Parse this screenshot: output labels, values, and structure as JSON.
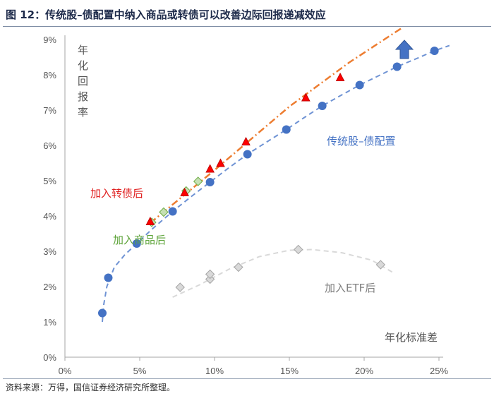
{
  "header": {
    "title": "图 12：传统股–债配置中纳入商品或转债可以改善边际回报递减效应"
  },
  "footer": {
    "source": "资料来源：万得，国信证券经济研究所整理。"
  },
  "chart_data": {
    "type": "scatter",
    "xlabel": "年化标准差",
    "ylabel": "年化回报率",
    "xlim": [
      0,
      0.25
    ],
    "ylim": [
      0,
      0.09
    ],
    "xticks": [
      0,
      0.05,
      0.1,
      0.15,
      0.2,
      0.25
    ],
    "yticks": [
      0,
      0.01,
      0.02,
      0.03,
      0.04,
      0.05,
      0.06,
      0.07,
      0.08,
      0.09
    ],
    "xtick_labels": [
      "0%",
      "5%",
      "10%",
      "15%",
      "20%",
      "25%"
    ],
    "ytick_labels": [
      "0%",
      "1%",
      "2%",
      "3%",
      "4%",
      "5%",
      "6%",
      "7%",
      "8%",
      "9%"
    ],
    "grid": false,
    "legend": "none",
    "series": [
      {
        "name": "传统股–债配置",
        "label_color": "#4472c4",
        "marker": "circle",
        "color": "#4472c4",
        "x": [
          0.025,
          0.029,
          0.048,
          0.072,
          0.097,
          0.122,
          0.148,
          0.172,
          0.197,
          0.222,
          0.247
        ],
        "y": [
          0.0125,
          0.0225,
          0.0322,
          0.0413,
          0.0496,
          0.0575,
          0.0645,
          0.0712,
          0.0771,
          0.0823,
          0.0868
        ]
      },
      {
        "name": "加入商品后",
        "label_color": "#5ea43a",
        "marker": "diamond",
        "color": "#92d050",
        "x": [
          0.058,
          0.066,
          0.081,
          0.089
        ],
        "y": [
          0.0382,
          0.0411,
          0.0471,
          0.0498
        ]
      },
      {
        "name": "加入转债后",
        "label_color": "#e02020",
        "marker": "triangle",
        "color": "#ff0000",
        "x": [
          0.057,
          0.08,
          0.097,
          0.104,
          0.121,
          0.161,
          0.184
        ],
        "y": [
          0.0384,
          0.0466,
          0.0533,
          0.0549,
          0.061,
          0.0735,
          0.0792
        ]
      },
      {
        "name": "加入ETF后",
        "label_color": "#7f7f7f",
        "marker": "diamond",
        "color": "#bfbfbf",
        "x": [
          0.077,
          0.097,
          0.097,
          0.116,
          0.156,
          0.211
        ],
        "y": [
          0.0198,
          0.0221,
          0.0235,
          0.0255,
          0.0305,
          0.0262
        ]
      }
    ],
    "annotations": [
      {
        "text": "传统股–债配置",
        "color": "#4472c4"
      },
      {
        "text": "加入转债后",
        "color": "#e02020"
      },
      {
        "text": "加入商品后",
        "color": "#5ea43a"
      },
      {
        "text": "加入ETF后",
        "color": "#7f7f7f"
      }
    ],
    "trend_lines": {
      "blue_frontier": {
        "color": "#6f93d4",
        "style": "dashed",
        "x": [
          0.025,
          0.026,
          0.028,
          0.033,
          0.04,
          0.048,
          0.058,
          0.072,
          0.085,
          0.097,
          0.11,
          0.122,
          0.135,
          0.148,
          0.16,
          0.172,
          0.185,
          0.197,
          0.21,
          0.222,
          0.235,
          0.247,
          0.257
        ],
        "y": [
          0.01,
          0.015,
          0.02,
          0.0255,
          0.029,
          0.0322,
          0.0362,
          0.0413,
          0.0457,
          0.0496,
          0.0538,
          0.0575,
          0.061,
          0.0645,
          0.0679,
          0.0712,
          0.0743,
          0.0771,
          0.0798,
          0.0823,
          0.0846,
          0.0868,
          0.0883
        ]
      },
      "orange_trend": {
        "color": "#ed7d31",
        "style": "dash-dot",
        "x": [
          0.057,
          0.1,
          0.15,
          0.19,
          0.226
        ],
        "y": [
          0.038,
          0.053,
          0.071,
          0.0835,
          0.0935
        ]
      },
      "grey_arc": {
        "color": "#d9d9d9",
        "style": "dashed",
        "x": [
          0.072,
          0.09,
          0.11,
          0.13,
          0.15,
          0.165,
          0.185,
          0.205,
          0.22
        ],
        "y": [
          0.017,
          0.0205,
          0.025,
          0.0285,
          0.0303,
          0.0305,
          0.0296,
          0.0275,
          0.0238
        ]
      }
    },
    "arrow": {
      "color": "#4472c4",
      "direction": "up"
    }
  }
}
